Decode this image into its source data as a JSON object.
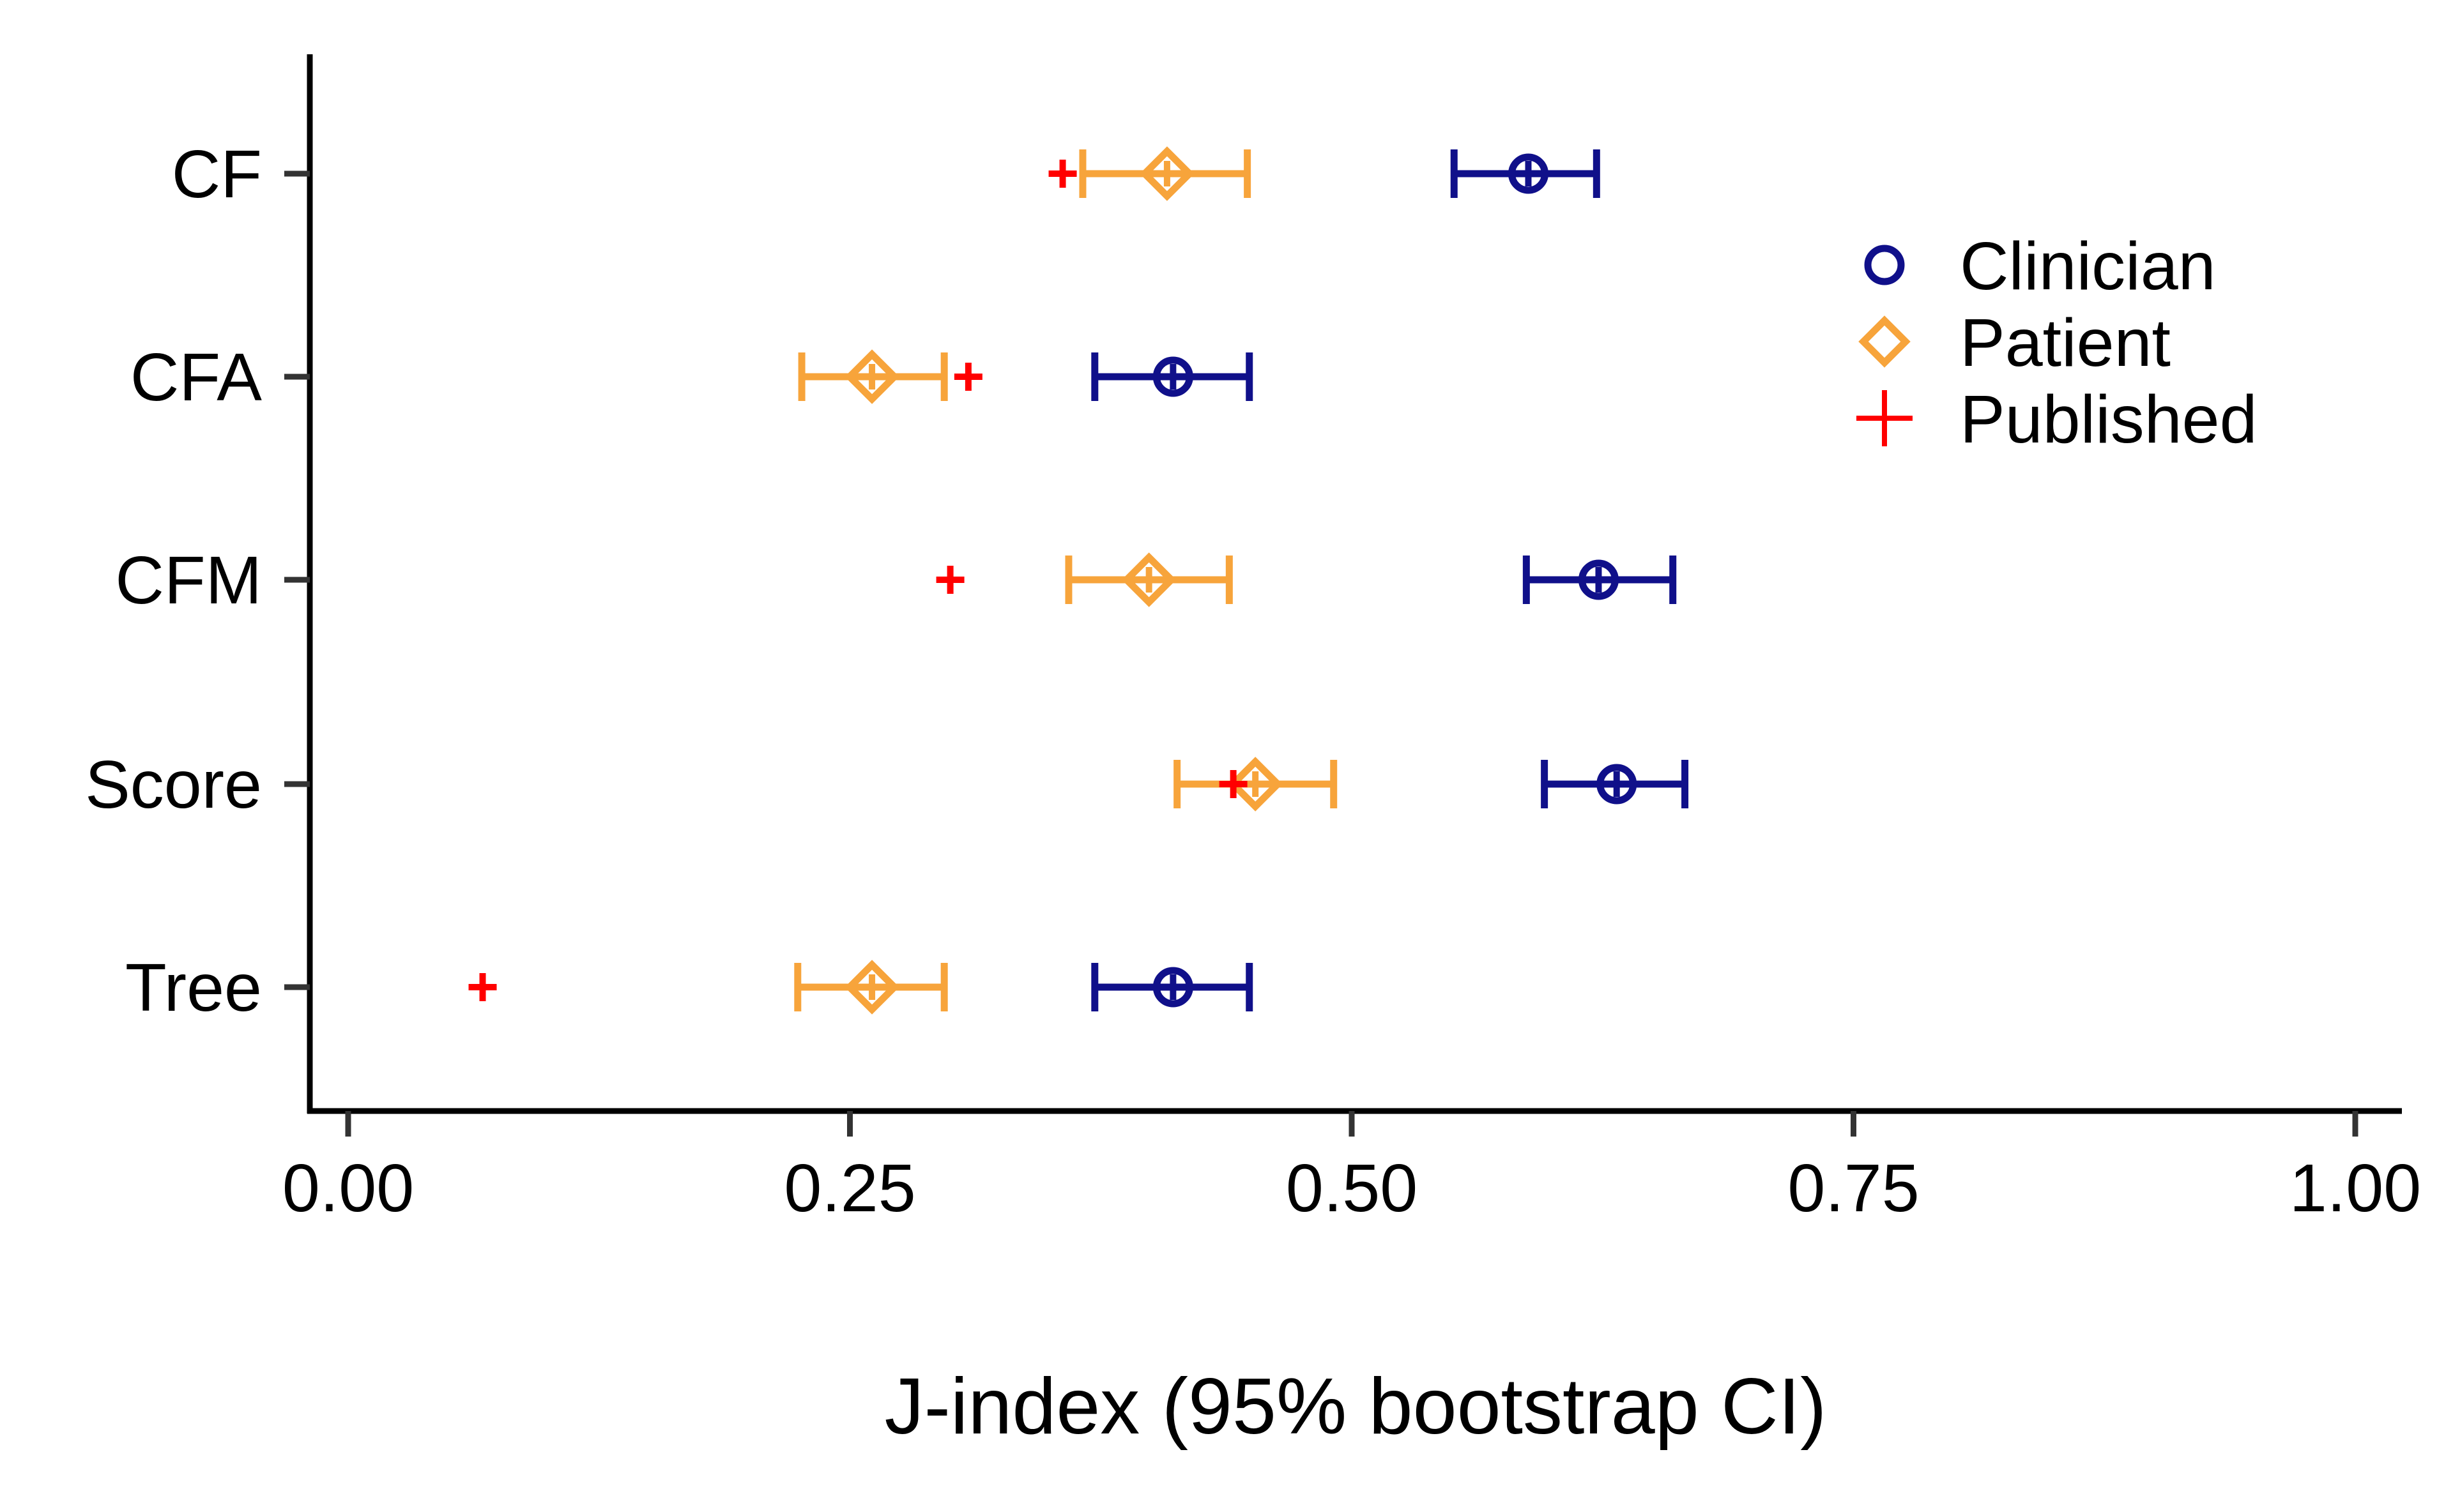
{
  "chart_data": {
    "type": "scatter",
    "orientation": "horizontal",
    "xlabel": "J-index (95% bootstrap CI)",
    "ylabel": "",
    "title": "",
    "xlim": [
      0,
      1
    ],
    "x_ticks": [
      "0.00",
      "0.25",
      "0.50",
      "0.75",
      "1.00"
    ],
    "x_tick_values": [
      0,
      0.25,
      0.5,
      0.75,
      1.0
    ],
    "categories": [
      "CF",
      "CFA",
      "CFM",
      "Score",
      "Tree"
    ],
    "grid": false,
    "legend_position": "top-right",
    "series": [
      {
        "name": "Clinician",
        "marker": "circle",
        "color": "#10108A",
        "values": [
          0.588,
          0.411,
          0.623,
          0.632,
          0.411
        ],
        "ci_low": [
          0.551,
          0.372,
          0.587,
          0.596,
          0.372
        ],
        "ci_high": [
          0.622,
          0.449,
          0.66,
          0.666,
          0.449
        ]
      },
      {
        "name": "Patient",
        "marker": "diamond",
        "color": "#F7A43B",
        "values": [
          0.408,
          0.261,
          0.399,
          0.452,
          0.261
        ],
        "ci_low": [
          0.366,
          0.226,
          0.359,
          0.413,
          0.224
        ],
        "ci_high": [
          0.448,
          0.297,
          0.439,
          0.491,
          0.297
        ]
      },
      {
        "name": "Published",
        "marker": "plus",
        "color": "#FF0000",
        "values": [
          0.356,
          0.309,
          0.3,
          0.441,
          0.067
        ]
      }
    ]
  }
}
